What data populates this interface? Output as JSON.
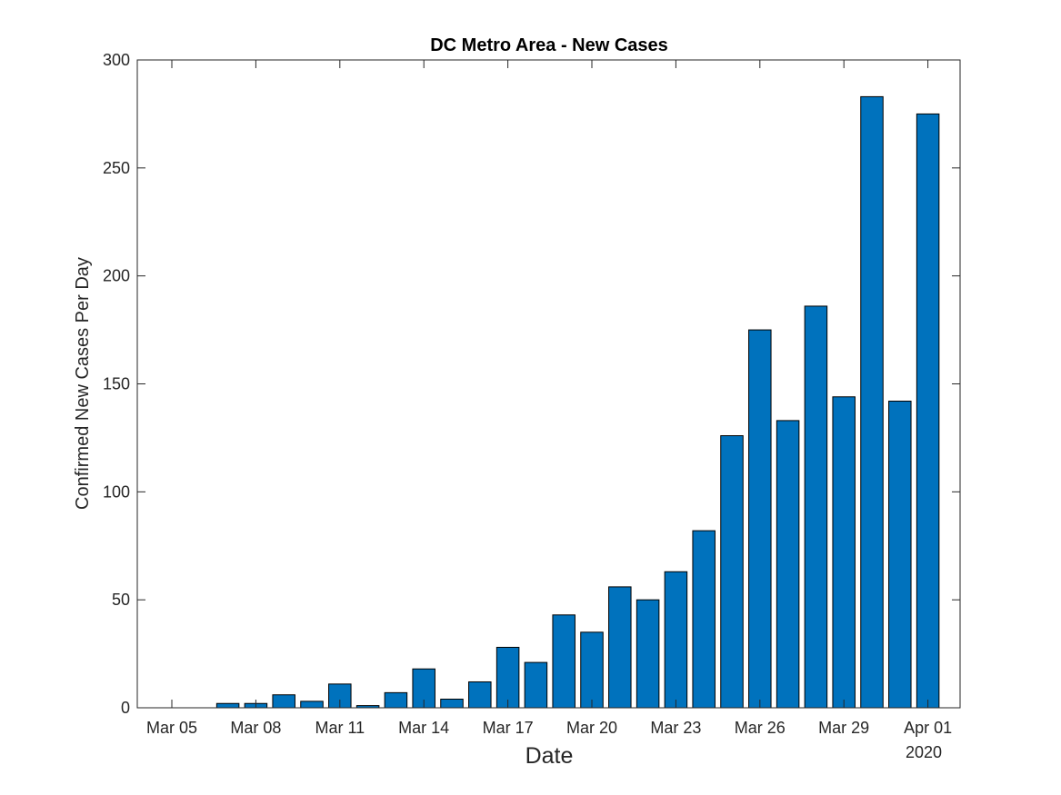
{
  "chart_data": {
    "type": "bar",
    "title": "DC Metro Area - New Cases",
    "xlabel": "Date",
    "ylabel": "Confirmed New Cases Per Day",
    "x_secondary_label": "2020",
    "ylim": [
      0,
      300
    ],
    "yticks": [
      0,
      50,
      100,
      150,
      200,
      250,
      300
    ],
    "categories": [
      "Mar 04",
      "Mar 05",
      "Mar 06",
      "Mar 07",
      "Mar 08",
      "Mar 09",
      "Mar 10",
      "Mar 11",
      "Mar 12",
      "Mar 13",
      "Mar 14",
      "Mar 15",
      "Mar 16",
      "Mar 17",
      "Mar 18",
      "Mar 19",
      "Mar 20",
      "Mar 21",
      "Mar 22",
      "Mar 23",
      "Mar 24",
      "Mar 25",
      "Mar 26",
      "Mar 27",
      "Mar 28",
      "Mar 29",
      "Mar 30",
      "Mar 31",
      "Apr 01"
    ],
    "values": [
      0,
      0,
      2,
      2,
      6,
      3,
      11,
      1,
      7,
      18,
      4,
      12,
      28,
      21,
      43,
      35,
      56,
      50,
      63,
      82,
      126,
      175,
      133,
      186,
      144,
      283,
      142,
      275,
      0
    ],
    "xticks": [
      {
        "label": "Mar 05",
        "index": 0
      },
      {
        "label": "Mar 08",
        "index": 3
      },
      {
        "label": "Mar 11",
        "index": 6
      },
      {
        "label": "Mar 14",
        "index": 9
      },
      {
        "label": "Mar 17",
        "index": 12
      },
      {
        "label": "Mar 20",
        "index": 15
      },
      {
        "label": "Mar 23",
        "index": 18
      },
      {
        "label": "Mar 26",
        "index": 21
      },
      {
        "label": "Mar 29",
        "index": 24
      },
      {
        "label": "Apr 01",
        "index": 27
      }
    ],
    "bar_color": "#0072BD",
    "grid": false,
    "legend": "none"
  }
}
